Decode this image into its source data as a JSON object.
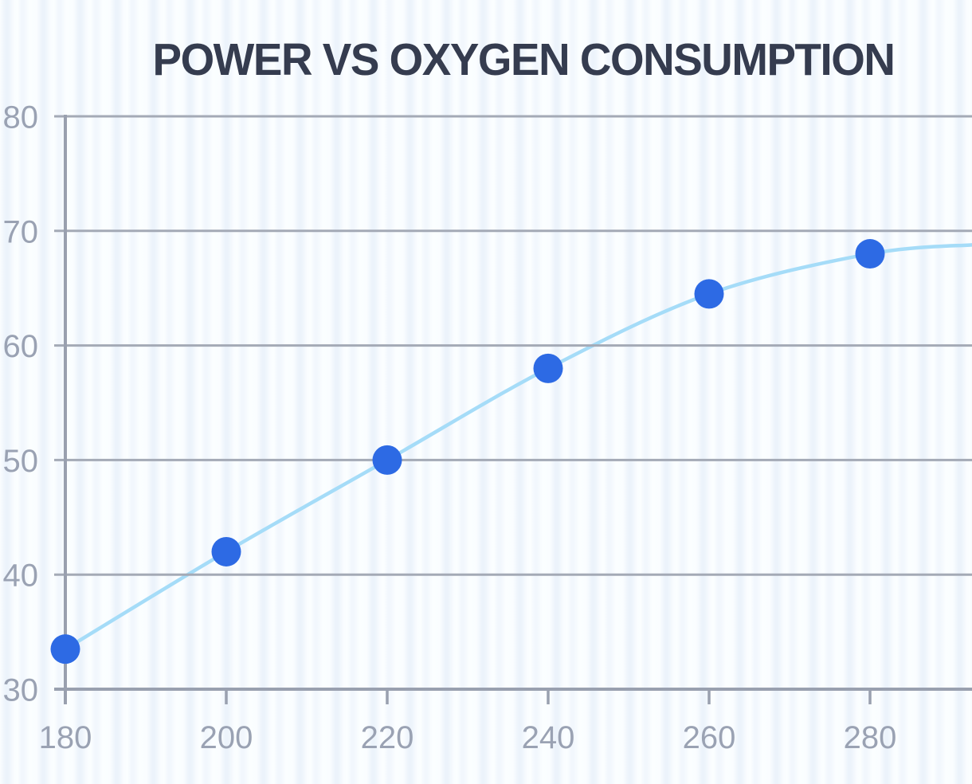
{
  "page": {
    "background_base_color": "#f9fcff",
    "background_stripe_color": "#ecf3fb"
  },
  "chart_data": {
    "type": "scatter",
    "title": "POWER VS OXYGEN CONSUMPTION",
    "x": [
      180,
      200,
      220,
      240,
      260,
      280
    ],
    "series": [
      {
        "name": "oxygen consumption",
        "values": [
          33.5,
          42,
          50,
          58,
          64.5,
          68
        ]
      }
    ],
    "trend_curve": {
      "style": "smooth",
      "extends_beyond_last_point_to": {
        "x": 293,
        "y": 68.8
      }
    },
    "xlabel": "",
    "ylabel": "",
    "xticks": [
      180,
      200,
      220,
      240,
      260,
      280
    ],
    "yticks": [
      80,
      70,
      60,
      50,
      40,
      30
    ],
    "xlim": [
      180,
      293
    ],
    "ylim": [
      30,
      80
    ],
    "grid": "horizontal-only",
    "legend": "none",
    "colors": {
      "point": "#2d6ae4",
      "curve": "#a5dcf8",
      "axis": "#99a0af",
      "grid": "#a4aab6",
      "tick_label": "#9aa2b3",
      "title": "#353c4f"
    }
  }
}
